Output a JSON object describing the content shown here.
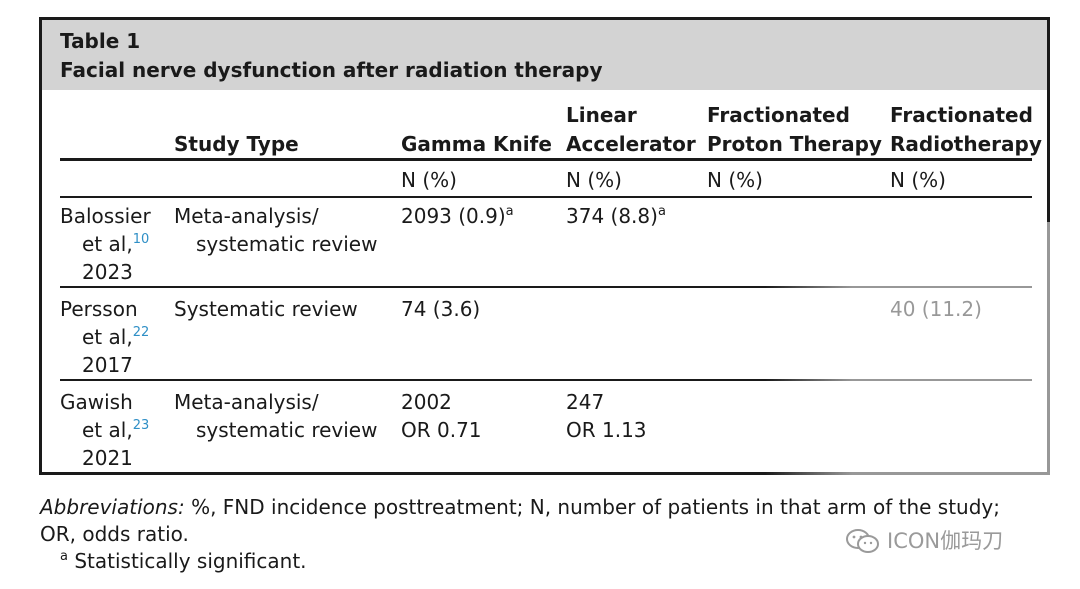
{
  "table": {
    "caption_line1": "Table 1",
    "caption_line2": "Facial nerve dysfunction after radiation therapy",
    "headers": {
      "study_type": "Study Type",
      "gamma_knife": "Gamma Knife",
      "linac_line1": "Linear",
      "linac_line2": "Accelerator",
      "proton_line1": "Fractionated",
      "proton_line2": "Proton Therapy",
      "frt_line1": "Fractionated",
      "frt_line2": "Radiotherapy"
    },
    "units": [
      "N (%)",
      "N (%)",
      "N (%)",
      "N (%)"
    ],
    "rows": [
      {
        "author_line1": "Balossier",
        "author_line2": "et al,",
        "ref": "10",
        "year": "2023",
        "type_line1": "Meta-analysis/",
        "type_line2": "systematic review",
        "gamma": "2093 (0.9)",
        "gamma_mark": "a",
        "linac": "374 (8.8)",
        "linac_mark": "a",
        "proton": "",
        "frt": ""
      },
      {
        "author_line1": "Persson",
        "author_line2": "et al,",
        "ref": "22",
        "year": "2017",
        "type_line1": "Systematic review",
        "gamma": "74 (3.6)",
        "linac": "",
        "proton": "",
        "frt": "40 (11.2)"
      },
      {
        "author_line1": "Gawish",
        "author_line2": "et al,",
        "ref": "23",
        "year": "2021",
        "type_line1": "Meta-analysis/",
        "type_line2": "systematic review",
        "gamma_line1": "2002",
        "gamma_line2": "OR 0.71",
        "linac_line1": "247",
        "linac_line2": "OR 1.13",
        "proton": "",
        "frt": ""
      }
    ]
  },
  "footnotes": {
    "abbrev_label": "Abbreviations:",
    "abbrev_text_line1": " %, FND incidence posttreatment; N, number of patients in that arm of the study;",
    "abbrev_text_line2": "OR, odds ratio.",
    "sig_mark": "a",
    "sig_text": "Statistically significant."
  },
  "watermark": {
    "icon": "wechat-icon",
    "text": "ICON伽玛刀"
  }
}
